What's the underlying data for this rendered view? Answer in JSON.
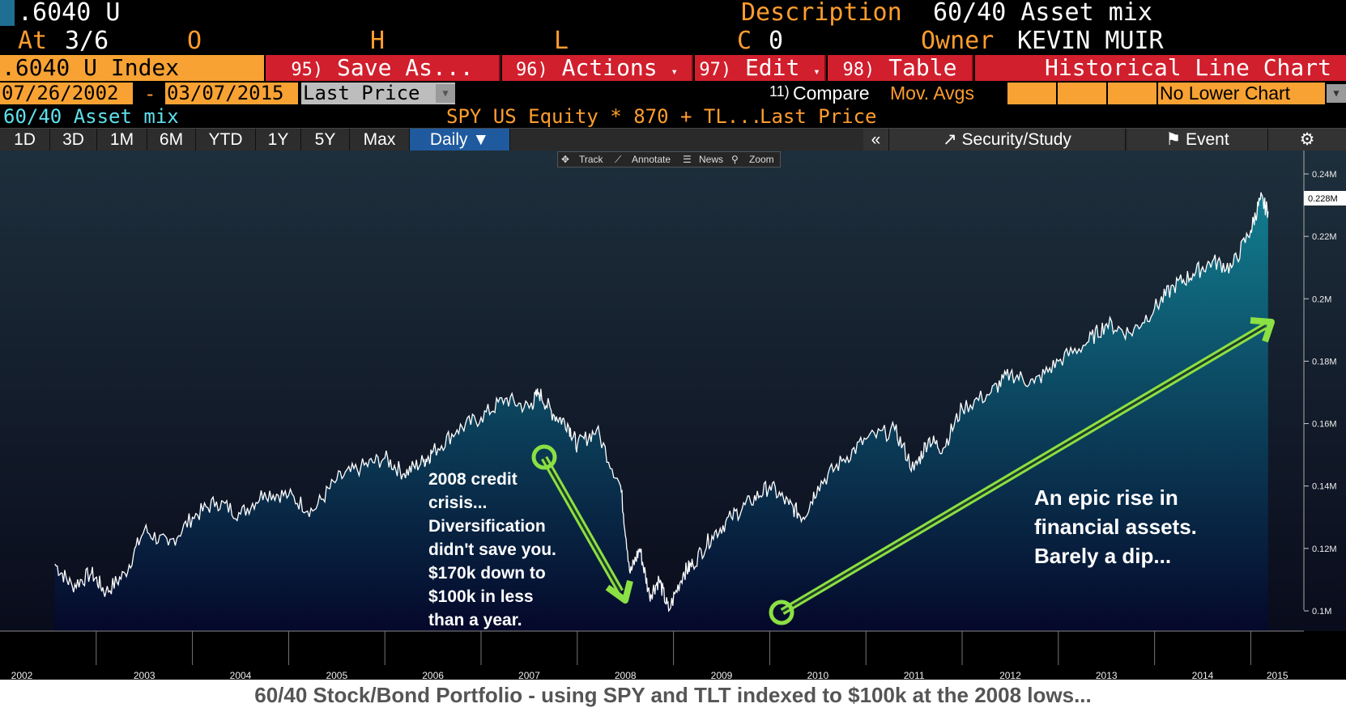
{
  "header": {
    "ticker": ".6040 U",
    "description_label": "Description",
    "description_value": "60/40 Asset mix",
    "at_label": "At",
    "at_value": "3/6",
    "open_label": "O",
    "high_label": "H",
    "low_label": "L",
    "close_label": "C",
    "close_value": "0",
    "owner_label": "Owner",
    "owner_value": "KEVIN MUIR"
  },
  "function_bar": {
    "index_name": ".6040 U Index",
    "save_num": "95)",
    "save_label": "Save As...",
    "actions_num": "96)",
    "actions_label": "Actions",
    "edit_num": "97)",
    "edit_label": "Edit",
    "table_num": "98)",
    "table_label": "Table",
    "chart_title": "Historical Line Chart"
  },
  "settings_bar": {
    "start_date": "07/26/2002",
    "date_sep": "-",
    "end_date": "03/07/2015",
    "field": "Last Price",
    "compare_num": "11)",
    "compare_label": "Compare",
    "mov_avgs": "Mov. Avgs",
    "lower_chart": "No Lower Chart"
  },
  "legend_bar": {
    "series_name": "60/40 Asset mix",
    "formula": "SPY US Equity * 870 + TL...",
    "field": "Last Price"
  },
  "period_tabs": [
    "1D",
    "3D",
    "1M",
    "6M",
    "YTD",
    "1Y",
    "5Y",
    "Max"
  ],
  "frequency": "Daily",
  "right_tabs": {
    "collapse": "«",
    "security_study": "Security/Study",
    "event": "Event"
  },
  "toolbar": {
    "track": "Track",
    "annotate": "Annotate",
    "news": "News",
    "zoom": "Zoom"
  },
  "annotations": {
    "left": "2008 credit\ncrisis...\nDiversification\ndidn't save you.\n$170k down to\n$100k in less\nthan a year.",
    "right": "An epic rise in\nfinancial assets.\nBarely a dip..."
  },
  "caption": "60/40 Stock/Bond Portfolio - using SPY and TLT indexed to $100k at the 2008 lows...",
  "colors": {
    "amber": "#ff9d2e",
    "function_red": "#d11f2d",
    "active_tab": "#1f5a9e",
    "arrow_green": "#8be043",
    "chart_top": "#127e90",
    "chart_bottom": "#05082a"
  },
  "chart_data": {
    "type": "area",
    "title": "",
    "xlabel": "",
    "ylabel": "",
    "x_ticks": [
      "2002",
      "2003",
      "2004",
      "2005",
      "2006",
      "2007",
      "2008",
      "2009",
      "2010",
      "2011",
      "2012",
      "2013",
      "2014",
      "2015"
    ],
    "y_ticks": [
      "0.24M",
      "0.22M",
      "0.2M",
      "0.18M",
      "0.16M",
      "0.14M",
      "0.12M",
      "0.1M"
    ],
    "y_tick_values": [
      0.24,
      0.22,
      0.2,
      0.18,
      0.16,
      0.14,
      0.12,
      0.1
    ],
    "ylim": [
      0.09,
      0.245
    ],
    "last_value_label": "0.228M",
    "last_value": 0.228,
    "grid": false,
    "legend": "none",
    "series": [
      {
        "x": [
          2002.57,
          2002.75,
          2002.95,
          2003.1,
          2003.3,
          2003.5,
          2003.75,
          2004.0,
          2004.25,
          2004.5,
          2004.75,
          2005.0,
          2005.25,
          2005.5,
          2005.75,
          2006.0,
          2006.2,
          2006.4,
          2006.5,
          2006.75,
          2007.0,
          2007.25,
          2007.5,
          2007.6,
          2007.75,
          2007.9,
          2008.0,
          2008.2,
          2008.45,
          2008.55,
          2008.65,
          2008.75,
          2008.85,
          2008.95,
          2009.1,
          2009.2,
          2009.4,
          2009.6,
          2009.8,
          2010.0,
          2010.2,
          2010.35,
          2010.5,
          2010.75,
          2011.0,
          2011.3,
          2011.5,
          2011.65,
          2011.8,
          2012.0,
          2012.3,
          2012.5,
          2012.75,
          2013.0,
          2013.3,
          2013.5,
          2013.75,
          2014.0,
          2014.2,
          2014.4,
          2014.6,
          2014.8,
          2015.0,
          2015.1,
          2015.18
        ],
        "values": [
          0.115,
          0.108,
          0.112,
          0.106,
          0.112,
          0.126,
          0.121,
          0.13,
          0.135,
          0.131,
          0.138,
          0.137,
          0.132,
          0.142,
          0.146,
          0.149,
          0.144,
          0.148,
          0.151,
          0.158,
          0.162,
          0.168,
          0.165,
          0.17,
          0.163,
          0.16,
          0.153,
          0.158,
          0.14,
          0.112,
          0.12,
          0.105,
          0.11,
          0.1,
          0.112,
          0.115,
          0.124,
          0.13,
          0.135,
          0.14,
          0.134,
          0.13,
          0.14,
          0.148,
          0.155,
          0.158,
          0.145,
          0.155,
          0.152,
          0.165,
          0.17,
          0.176,
          0.173,
          0.18,
          0.186,
          0.192,
          0.189,
          0.197,
          0.204,
          0.208,
          0.212,
          0.21,
          0.222,
          0.232,
          0.228
        ]
      }
    ]
  }
}
